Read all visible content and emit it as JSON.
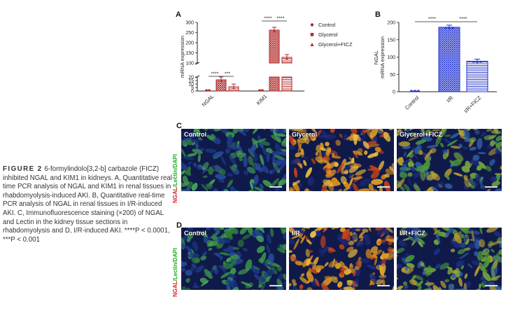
{
  "caption": {
    "fig_label": "FIGURE 2",
    "text": " 6-formylindolo[3,2-b] carbazole (FICZ) inhibited NGAL and KIM1 in kidneys. A, Quantitative real-time PCR analysis of NGAL and KIM1 in renal tissues in rhabdomyolysis-induced AKI. B, Quantitative real-time PCR analysis of NGAL in renal tissues in I/R-induced AKI. C, Immunofluorescence staining (×200) of NGAL and Lectin in the kidney tissue sections in rhabdomyolysis and D, I/R-induced AKI. ****P < 0.0001, ***P < 0.001"
  },
  "panels": {
    "A": "A",
    "B": "B",
    "C": "C",
    "D": "D"
  },
  "colors": {
    "control": "#b02a2a",
    "glycerol": "#b02a2a",
    "ficz": "#b02a2a",
    "ir_control": "#2233cc",
    "ir": "#2233cc",
    "ir_ficz": "#2233cc"
  },
  "chart_data": [
    {
      "type": "bar",
      "panel": "A",
      "categories": [
        "NGAL",
        "KIM1"
      ],
      "series": [
        {
          "name": "Control",
          "values": [
            1,
            1
          ]
        },
        {
          "name": "Glycerol",
          "values": [
            16,
            262
          ]
        },
        {
          "name": "Glycerol+FICZ",
          "values": [
            6,
            128
          ]
        }
      ],
      "ylabel": "mRNA expression",
      "yticks_lower": [
        "0",
        "5",
        "10",
        "15",
        "20"
      ],
      "yticks_upper": [
        "100",
        "150",
        "200",
        "250",
        "300"
      ],
      "axis_break": [
        20,
        100
      ],
      "significance": [
        "****",
        "***",
        "****",
        "****"
      ],
      "legend": [
        "Control",
        "Glycerol",
        "Glycerol+FICZ"
      ],
      "legend_position": "top-right"
    },
    {
      "type": "bar",
      "panel": "B",
      "categories": [
        "Control",
        "I/R",
        "I/R+FICZ"
      ],
      "values": [
        1,
        186,
        88
      ],
      "ylabel_line1": "NGAL",
      "ylabel_line2": "mRNA expression",
      "ylim": [
        0,
        200
      ],
      "yticks": [
        "0",
        "50",
        "100",
        "150",
        "200"
      ],
      "significance": [
        "****",
        "****"
      ]
    }
  ],
  "micrographs": {
    "C": {
      "stain_label_ngal": "NGAL",
      "stain_label_rest": "/Lectin/DAPI",
      "images": [
        "Control",
        "Glycerol",
        "Glycerol+FICZ"
      ]
    },
    "D": {
      "stain_label_ngal": "NGAL",
      "stain_label_rest": "/Lectin/DAPI",
      "images": [
        "Control",
        "I/R",
        "I/R+FICZ"
      ]
    }
  }
}
